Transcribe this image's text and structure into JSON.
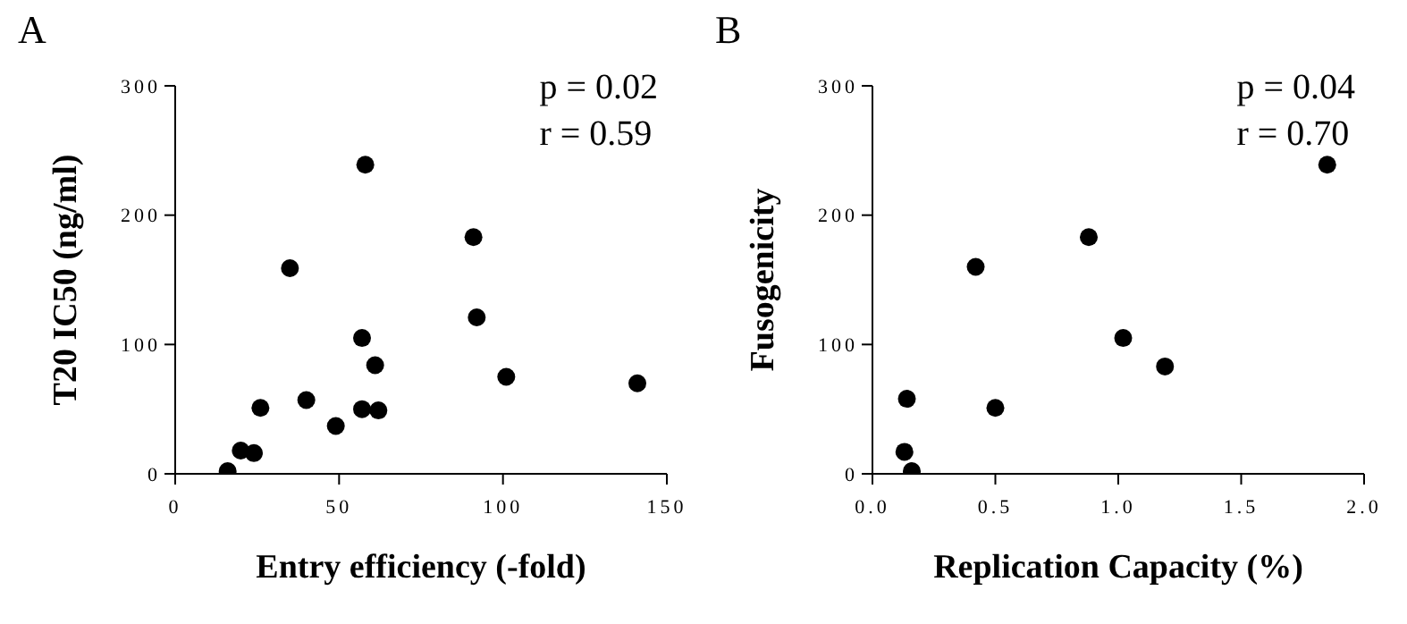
{
  "chart_data": [
    {
      "type": "scatter",
      "title": "A",
      "xlabel": "Entry efficiency (-fold)",
      "ylabel": "T20 IC50 (ng/ml)",
      "annotations": [
        "p = 0.02",
        "r = 0.59"
      ],
      "x": [
        16,
        20,
        24,
        26,
        35,
        40,
        49,
        57,
        57,
        58,
        61,
        62,
        91,
        92,
        101,
        141
      ],
      "values": [
        2,
        18,
        16,
        51,
        159,
        57,
        37,
        50,
        105,
        239,
        84,
        49,
        183,
        121,
        75,
        70
      ],
      "color": "#000000",
      "marker": "circle",
      "xlim": [
        0,
        150
      ],
      "xticks": [
        0,
        50,
        100,
        150
      ],
      "ylim": [
        0,
        300
      ],
      "yticks": [
        0,
        100,
        200,
        300
      ],
      "grid": false,
      "legend": false
    },
    {
      "type": "scatter",
      "title": "B",
      "xlabel": "Replication Capacity (%)",
      "ylabel": "Fusogenicity",
      "annotations": [
        "p = 0.04",
        "r = 0.70"
      ],
      "x": [
        1.85,
        0.88,
        0.42,
        1.02,
        1.19,
        0.14,
        0.5,
        0.13,
        0.16
      ],
      "values": [
        239,
        183,
        160,
        105,
        83,
        58,
        51,
        17,
        2
      ],
      "color": "#000000",
      "marker": "circle",
      "xlim": [
        0,
        2
      ],
      "xticks": [
        {
          "value": 0,
          "label": "0.0"
        },
        0.5,
        {
          "value": 1,
          "label": "1.0"
        },
        1.5,
        {
          "value": 2,
          "label": "2.0"
        }
      ],
      "ylim": [
        0,
        300
      ],
      "yticks": [
        0,
        100,
        200,
        300
      ],
      "grid": false,
      "legend": false
    }
  ]
}
